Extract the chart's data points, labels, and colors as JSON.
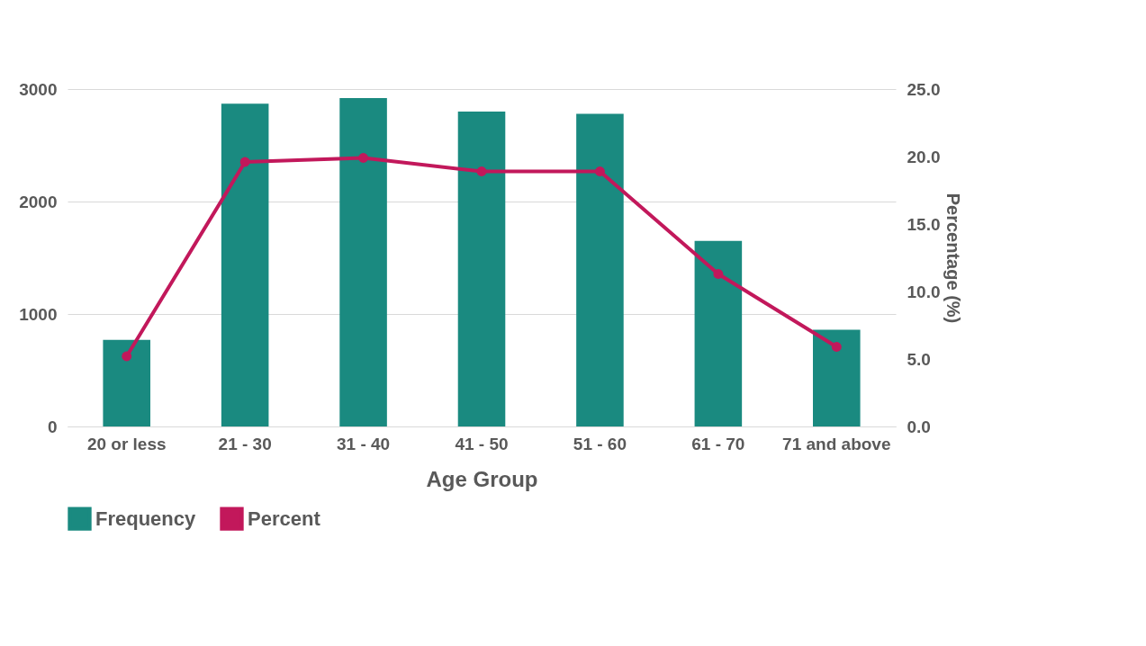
{
  "chart_data": {
    "type": "bar",
    "xlabel": "Age Group",
    "y2label": "Percentage (%)",
    "categories": [
      "20 or less",
      "21 - 30",
      "31 - 40",
      "41 - 50",
      "51 - 60",
      "61 - 70",
      "71 and above"
    ],
    "series": [
      {
        "name": "Frequency",
        "color": "#1a8a80",
        "values": [
          770,
          2870,
          2920,
          2800,
          2780,
          1650,
          860
        ]
      },
      {
        "name": "Percent",
        "type": "line",
        "axis": "y2",
        "color": "#c2185b",
        "values": [
          5.2,
          19.6,
          19.9,
          18.9,
          18.9,
          11.3,
          5.9
        ]
      }
    ],
    "ylim": [
      0,
      3000
    ],
    "yticks": [
      0,
      1000,
      2000,
      3000
    ],
    "y2lim": [
      0,
      25
    ],
    "y2ticks": [
      {
        "value": 0,
        "label": "0.0"
      },
      {
        "value": 5,
        "label": "5.0"
      },
      {
        "value": 10,
        "label": "10.0"
      },
      {
        "value": 15,
        "label": "15.0"
      },
      {
        "value": 20,
        "label": "20.0"
      },
      {
        "value": 25,
        "label": "25.0"
      }
    ],
    "grid": "y",
    "legend": "bottom",
    "marker": "circle",
    "line_style": "solid"
  }
}
